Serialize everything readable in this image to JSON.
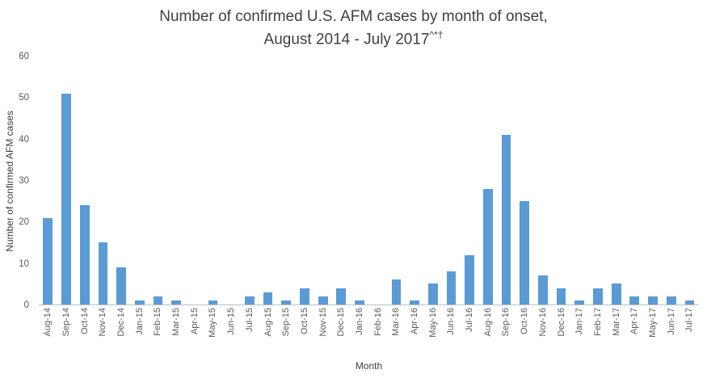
{
  "title": {
    "line1": "Number of confirmed U.S. AFM cases by month of onset,",
    "line2_main": "August 2014 - July 2017",
    "line2_superscript": "^*†"
  },
  "axes": {
    "y_title": "Number of confirmed AFM cases",
    "x_title": "Month"
  },
  "colors": {
    "bar": "#5B9BD5",
    "axis_line": "#BFBFBF",
    "title_text": "#404040",
    "tick_text": "#595959"
  },
  "chart_data": {
    "type": "bar",
    "title": "Number of confirmed U.S. AFM cases by month of onset, August 2014 - July 2017^*†",
    "xlabel": "Month",
    "ylabel": "Number of confirmed AFM cases",
    "ylim": [
      0,
      60
    ],
    "yticks": [
      0,
      10,
      20,
      30,
      40,
      50,
      60
    ],
    "grid": false,
    "legend": false,
    "bar_color": "#5B9BD5",
    "categories": [
      "Aug-14",
      "Sep-14",
      "Oct-14",
      "Nov-14",
      "Dec-14",
      "Jan-15",
      "Feb-15",
      "Mar-15",
      "Apr-15",
      "May-15",
      "Jun-15",
      "Jul-15",
      "Aug-15",
      "Sep-15",
      "Oct-15",
      "Nov-15",
      "Dec-15",
      "Jan-16",
      "Feb-16",
      "Mar-16",
      "Apr-16",
      "May-16",
      "Jun-16",
      "Jul-16",
      "Aug-16",
      "Sep-16",
      "Oct-16",
      "Nov-16",
      "Dec-16",
      "Jan-17",
      "Feb-17",
      "Mar-17",
      "Apr-17",
      "May-17",
      "Jun-17",
      "Jul-17"
    ],
    "values": [
      21,
      51,
      24,
      15,
      9,
      1,
      2,
      1,
      0,
      1,
      0,
      2,
      3,
      1,
      4,
      2,
      4,
      1,
      0,
      6,
      1,
      5,
      8,
      12,
      28,
      41,
      25,
      7,
      4,
      1,
      4,
      5,
      2,
      2,
      2,
      1
    ]
  }
}
